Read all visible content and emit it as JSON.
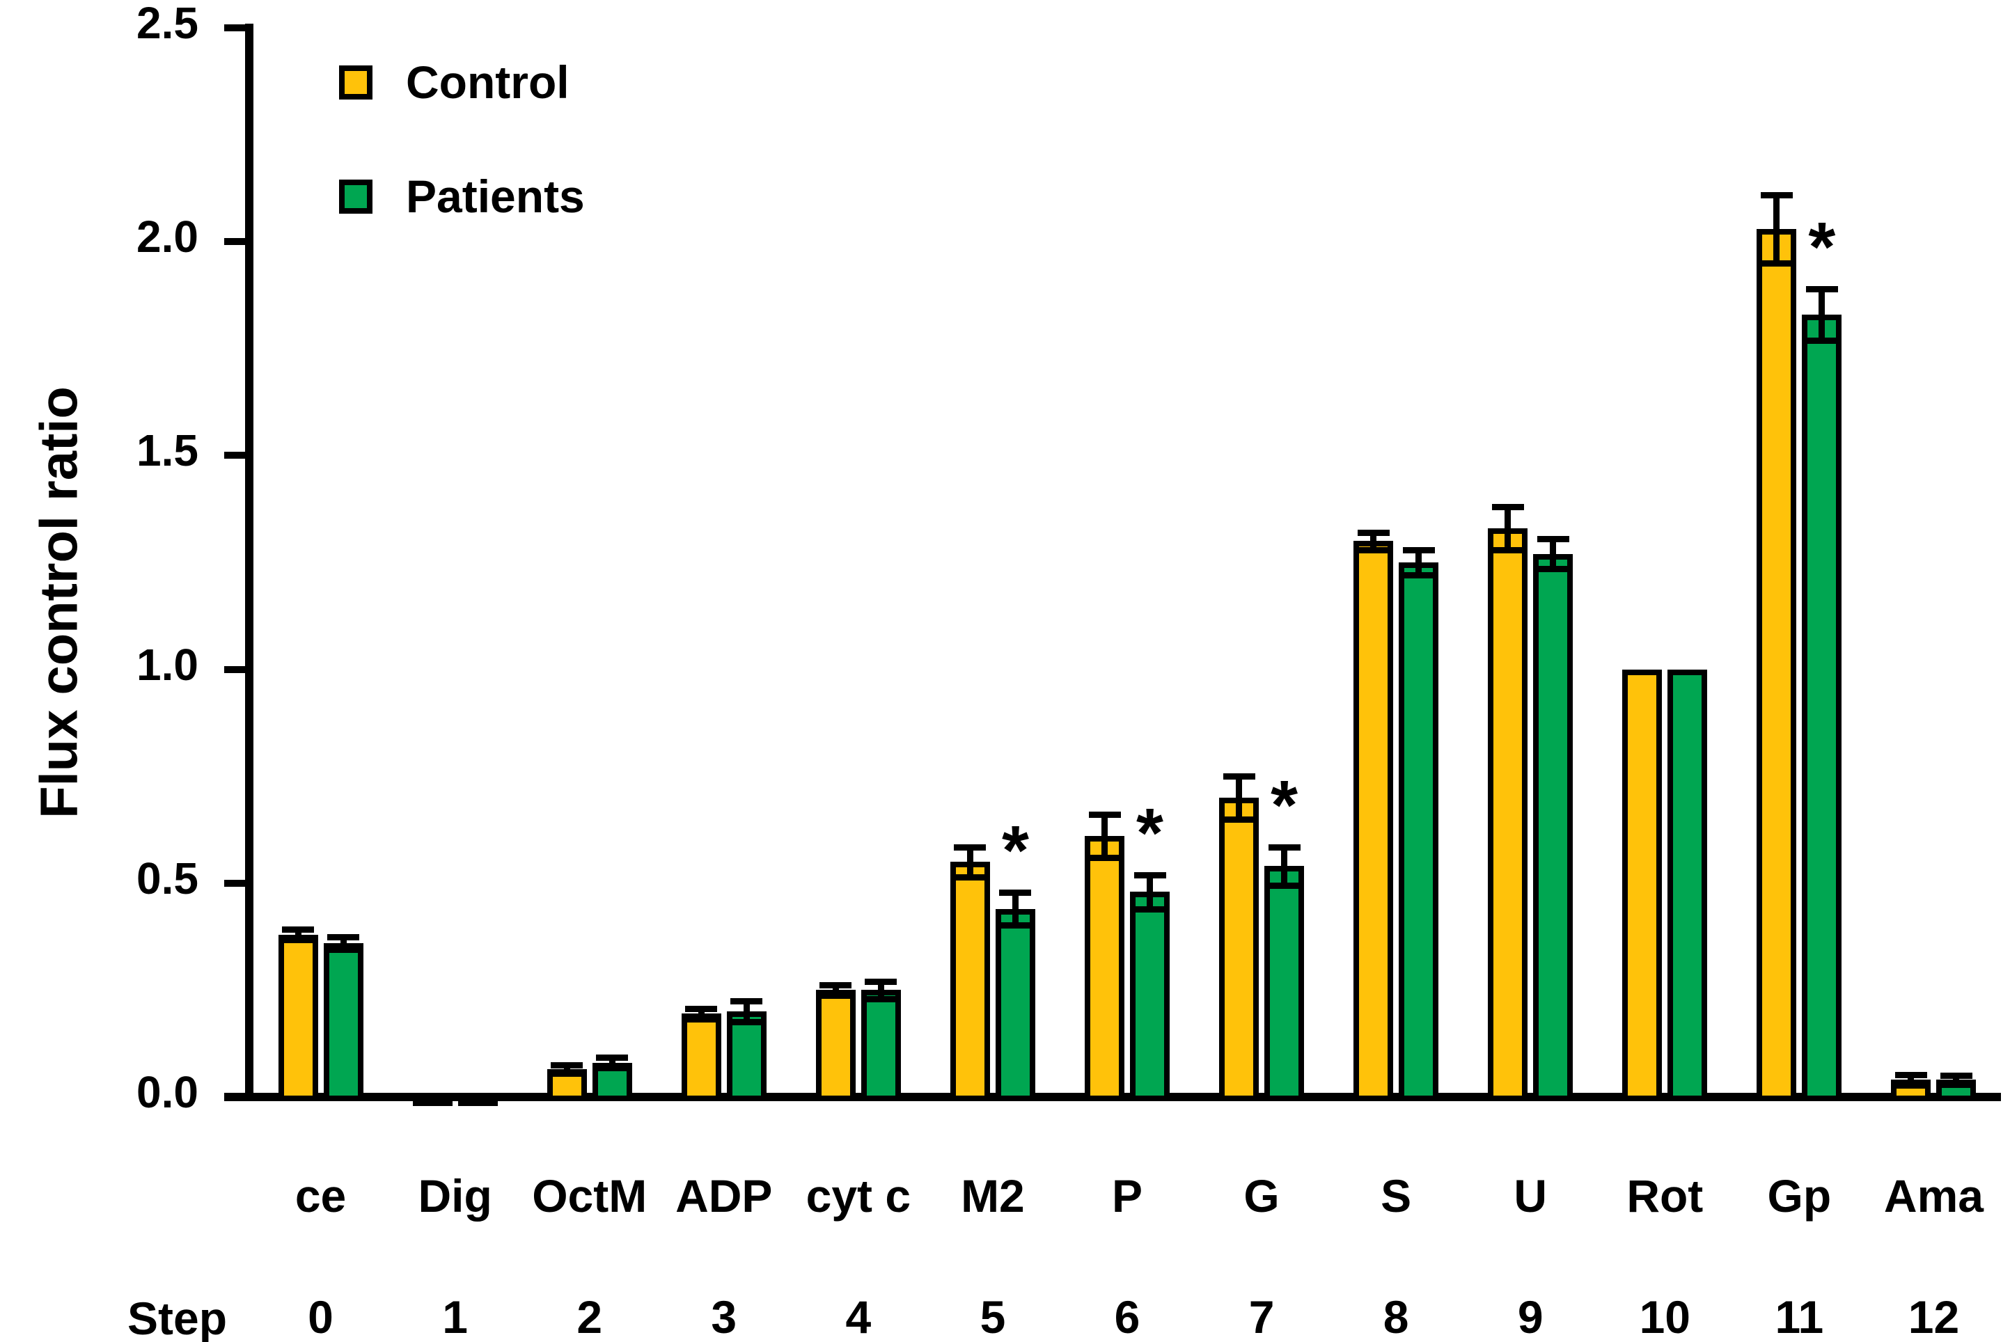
{
  "chart_data": {
    "type": "bar",
    "title": "",
    "xlabel": "",
    "ylabel": "Flux control ratio",
    "ylim": [
      0,
      2.5
    ],
    "yticks": [
      "0.0",
      "0.5",
      "1.0",
      "1.5",
      "2.0",
      "2.5"
    ],
    "grid": false,
    "legend_position": "top-left",
    "step_row_label": "Step",
    "categories": [
      "ce",
      "Dig",
      "OctM",
      "ADP",
      "cyt c",
      "M2",
      "P",
      "G",
      "S",
      "U",
      "Rot",
      "Gp",
      "Ama"
    ],
    "step_labels": [
      "0",
      "1",
      "2",
      "3",
      "4",
      "5",
      "6",
      "7",
      "8",
      "9",
      "10",
      "11",
      "12"
    ],
    "series": [
      {
        "name": "Control",
        "color": "#FFC20A",
        "values": [
          0.38,
          0.005,
          0.065,
          0.195,
          0.25,
          0.55,
          0.61,
          0.7,
          1.3,
          1.33,
          1.0,
          2.03,
          0.04
        ],
        "errors": [
          0.012,
          0,
          0.01,
          0.012,
          0.012,
          0.035,
          0.05,
          0.05,
          0.02,
          0.05,
          0,
          0.08,
          0.012
        ]
      },
      {
        "name": "Patients",
        "color": "#00A651",
        "values": [
          0.36,
          0.005,
          0.08,
          0.2,
          0.25,
          0.44,
          0.48,
          0.54,
          1.25,
          1.27,
          1.0,
          1.83,
          0.04
        ],
        "errors": [
          0.015,
          0,
          0.012,
          0.025,
          0.02,
          0.038,
          0.04,
          0.045,
          0.03,
          0.035,
          0,
          0.06,
          0.01
        ]
      }
    ],
    "significance_marker": "*",
    "significant_categories": [
      "M2",
      "P",
      "G",
      "Gp"
    ],
    "significant_indices": [
      5,
      6,
      7,
      11
    ]
  }
}
